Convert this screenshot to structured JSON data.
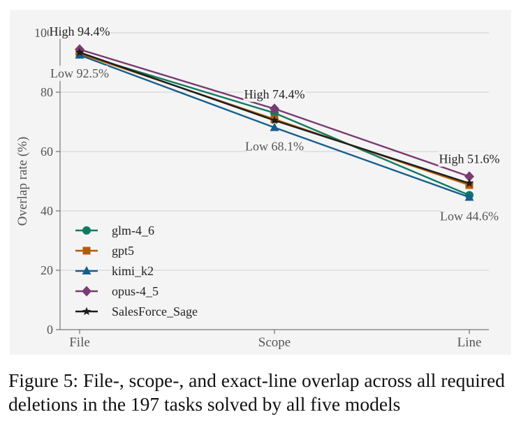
{
  "chart_data": {
    "type": "line",
    "categories": [
      "File",
      "Scope",
      "Line"
    ],
    "ylabel": "Overlap rate (%)",
    "xlabel": "",
    "ylim": [
      0,
      100
    ],
    "yticks": [
      0,
      20,
      40,
      60,
      80,
      100
    ],
    "grid": "horizontal",
    "legend_position": "lower-left",
    "series": [
      {
        "name": "glm-4_6",
        "values": [
          92.9,
          73.0,
          45.3
        ],
        "color": "#0f7a64",
        "marker": "circle"
      },
      {
        "name": "gpt5",
        "values": [
          93.0,
          70.9,
          48.7
        ],
        "color": "#b35c06",
        "marker": "square"
      },
      {
        "name": "kimi_k2",
        "values": [
          92.5,
          68.1,
          44.6
        ],
        "color": "#155e8e",
        "marker": "triangle"
      },
      {
        "name": "opus-4_5",
        "values": [
          94.4,
          74.4,
          51.6
        ],
        "color": "#7a3a72",
        "marker": "diamond"
      },
      {
        "name": "SalesForce_Sage",
        "values": [
          93.4,
          70.5,
          49.3
        ],
        "color": "#1c1c1c",
        "marker": "star"
      }
    ],
    "annotations": [
      {
        "category": "File",
        "value": 94.4,
        "text": "High 94.4%",
        "position": "above"
      },
      {
        "category": "File",
        "value": 92.5,
        "text": "Low 92.5%",
        "position": "below"
      },
      {
        "category": "Scope",
        "value": 74.4,
        "text": "High 74.4%",
        "position": "above"
      },
      {
        "category": "Scope",
        "value": 68.1,
        "text": "Low 68.1%",
        "position": "below"
      },
      {
        "category": "Line",
        "value": 51.6,
        "text": "High 51.6%",
        "position": "above"
      },
      {
        "category": "Line",
        "value": 44.6,
        "text": "Low 44.6%",
        "position": "below"
      }
    ]
  },
  "caption": "Figure 5: File-, scope-, and exact-line overlap across all required deletions in the 197 tasks solved by all five models"
}
